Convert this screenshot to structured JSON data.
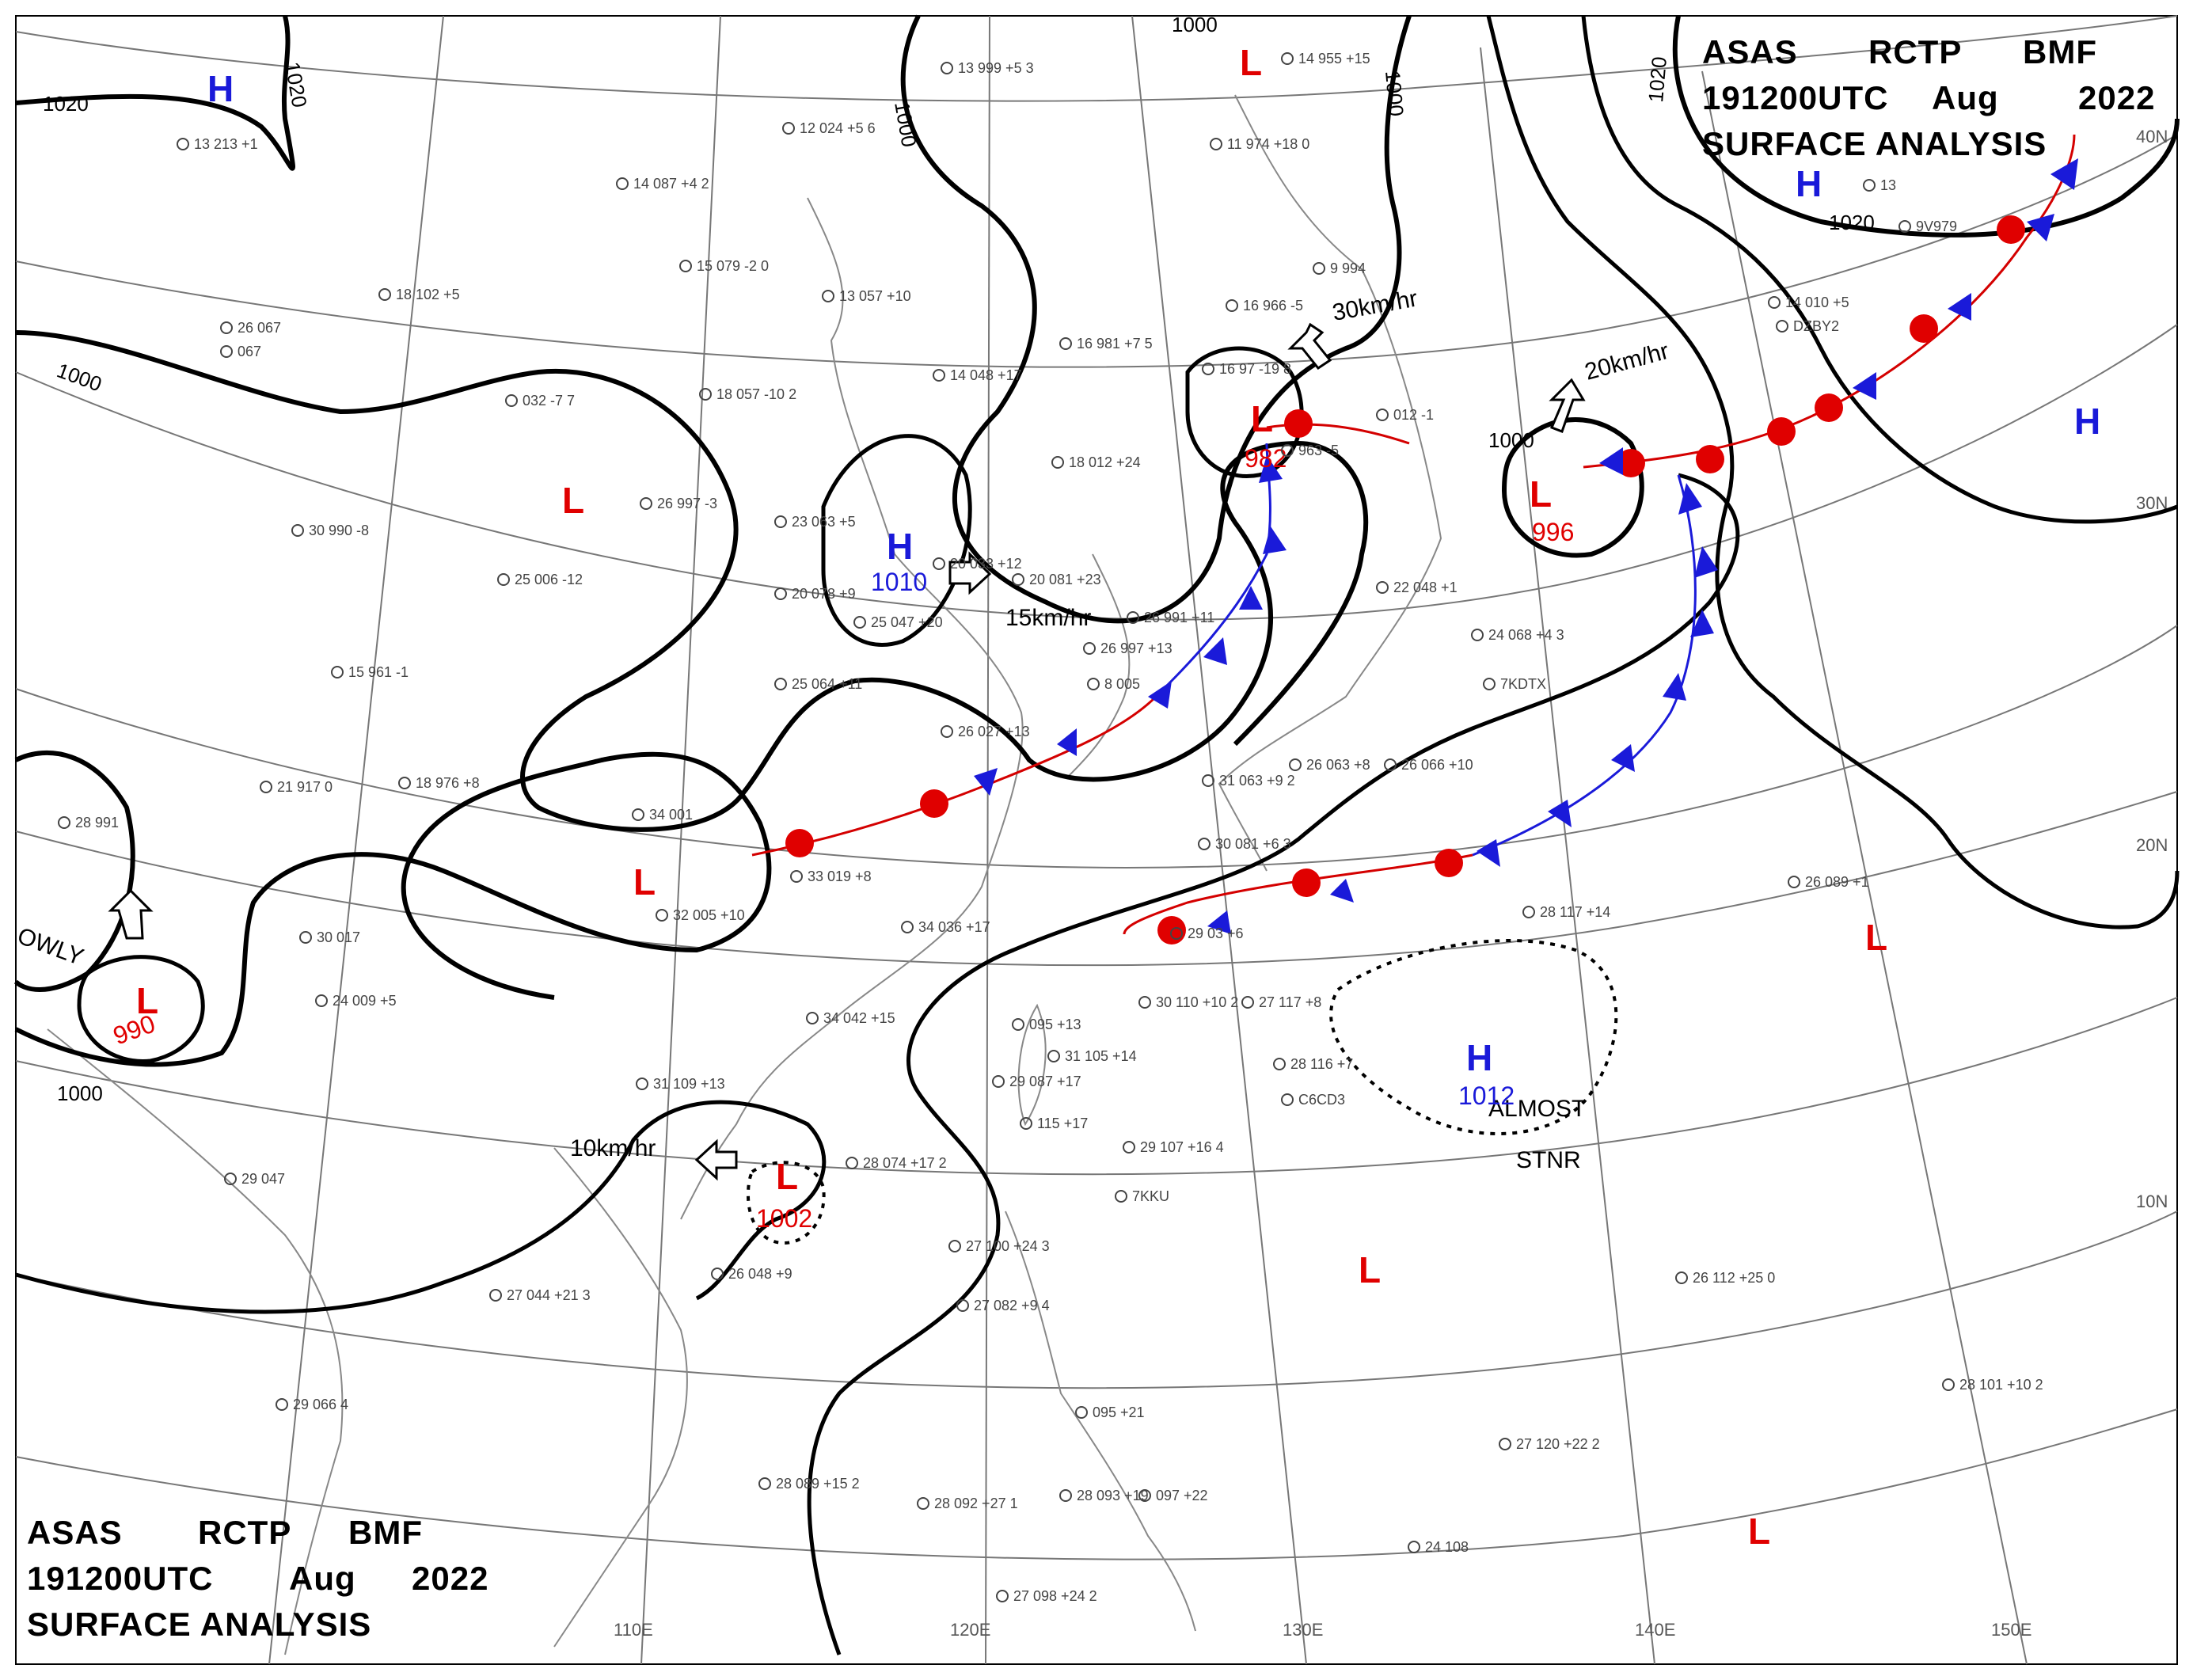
{
  "header_top": {
    "line1": [
      "ASAS",
      "RCTP",
      "BMF"
    ],
    "line2": [
      "191200UTC",
      "Aug",
      "2022"
    ],
    "line3": "SURFACE  ANALYSIS"
  },
  "header_bottom": {
    "line1": [
      "ASAS",
      "RCTP",
      "BMF"
    ],
    "line2": [
      "191200UTC",
      "Aug",
      "2022"
    ],
    "line3": "SURFACE  ANALYSIS"
  },
  "longitude_labels": [
    "110E",
    "120E",
    "130E",
    "140E",
    "150E"
  ],
  "latitude_labels": [
    "40N",
    "30N",
    "20N",
    "10N"
  ],
  "isobar_labels": [
    "1020",
    "1020",
    "1000",
    "1000",
    "1000",
    "1000",
    "1000",
    "1020",
    "1020",
    "1000"
  ],
  "pressure_centers": [
    {
      "type": "H",
      "value": ""
    },
    {
      "type": "L",
      "value": ""
    },
    {
      "type": "H",
      "value": "1010"
    },
    {
      "type": "L",
      "value": "982"
    },
    {
      "type": "L",
      "value": "996"
    },
    {
      "type": "H",
      "value": ""
    },
    {
      "type": "H",
      "value": ""
    },
    {
      "type": "L",
      "value": ""
    },
    {
      "type": "L",
      "value": "990"
    },
    {
      "type": "L",
      "value": "1002"
    },
    {
      "type": "H",
      "value": "1012"
    },
    {
      "type": "L",
      "value": ""
    },
    {
      "type": "L",
      "value": ""
    },
    {
      "type": "L",
      "value": ""
    },
    {
      "type": "L",
      "value": ""
    }
  ],
  "movements": [
    "30km/hr",
    "20km/hr",
    "15km/hr",
    "10km/hr",
    "OWLY"
  ],
  "annotations": {
    "almost": "ALMOST",
    "stnr": "STNR"
  },
  "stations": [
    "13 999 +5 3",
    "14 955 +15",
    "12 024 +5 6",
    "14 087 +4 2",
    "15 079 -2 0",
    "13 057 +10",
    "18 102 +5",
    "067",
    "032 -7 7",
    "18 057 -10 2",
    "11 974 +18 0",
    "16 981 +7 5",
    "14 048 +17",
    "16 966 -5",
    "9 994",
    "16 97 -19 8",
    "963 -5",
    "012 -1",
    "18 012 +24",
    "26 997 -3",
    "30 990 -8",
    "25 006 -12",
    "23 063 +5",
    "20 078 +9",
    "20 033 +12",
    "20 081 +23",
    "25 047 +20",
    "25 064 +11",
    "15 961 -1",
    "21 917 0",
    "18 976 +8",
    "34 001",
    "28 991",
    "33 019 +8",
    "32 005 +10",
    "34 036 +17",
    "30 017",
    "24 009 +5",
    "34 042 +15",
    "26 027 +13",
    "26 991 +11",
    "26 997 +13",
    "8 005",
    "22 048 +1",
    "24 068 +4 3",
    "7KDTX",
    "31 063 +9 2",
    "30 081 +6 3",
    "26 063 +8",
    "26 066 +10",
    "26 089 +1",
    "28 117 +14",
    "29 03 +6",
    "30 110 +10 2",
    "27 117 +8",
    "28 116 +7",
    "C6CD3",
    "095 +13",
    "31 105 +14",
    "29 087 +17",
    "115 +17",
    "29 107 +16 4",
    "7KKU",
    "31 109 +13",
    "28 074 +17 2",
    "26 048 +9",
    "27 100 +24 3",
    "27 082 +9 4",
    "29 047",
    "27 044 +21 3",
    "29 066 4",
    "28 089 +15 2",
    "28 092 +27 1",
    "28 093 +19",
    "097 +22",
    "095 +21",
    "27 098 +24 2",
    "24 108",
    "27 120 +22 2",
    "28 101 +10 2",
    "26 112 +25 0",
    "14 010 +5",
    "DZBY2",
    "13",
    "9V979",
    "13 213 +1",
    "26 067"
  ]
}
